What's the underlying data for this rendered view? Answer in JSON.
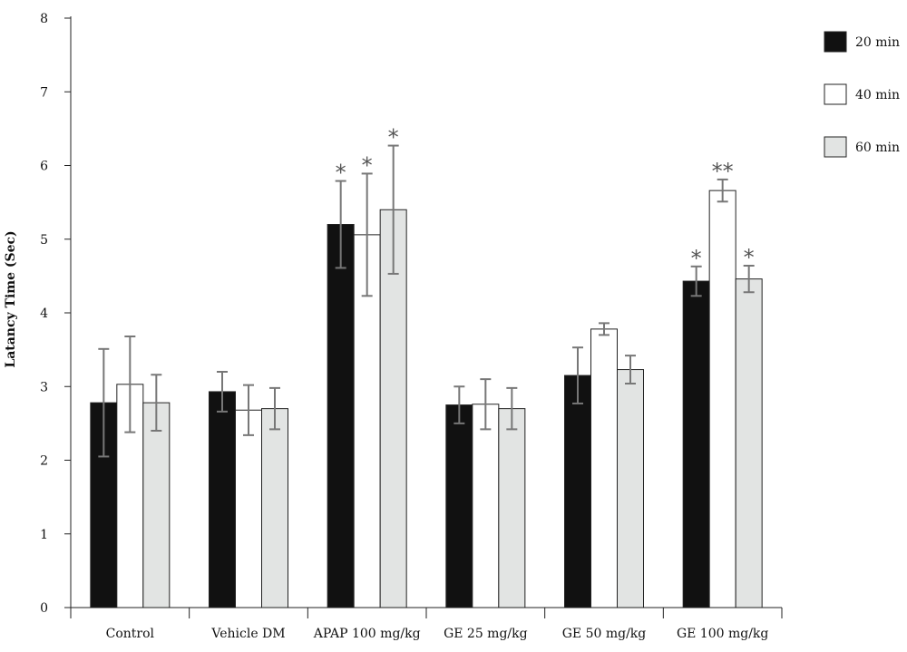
{
  "chart_data": {
    "type": "bar",
    "ylabel": "Latancy Time (Sec)",
    "xlabel": "",
    "ylim": [
      0,
      8
    ],
    "yticks": [
      0,
      1,
      2,
      3,
      4,
      5,
      6,
      7,
      8
    ],
    "grid": false,
    "legend_position": "top-right",
    "categories": [
      "Control",
      "Vehicle DM",
      "APAP 100 mg/kg",
      "GE 25 mg/kg",
      "GE 50 mg/kg",
      "GE 100 mg/kg"
    ],
    "series": [
      {
        "name": "20 min",
        "color": "#111111",
        "values": [
          2.78,
          2.93,
          5.2,
          2.75,
          3.15,
          4.43
        ],
        "errors": [
          0.73,
          0.27,
          0.59,
          0.25,
          0.38,
          0.2
        ],
        "significance": [
          "",
          "",
          "*",
          "",
          "",
          "*"
        ]
      },
      {
        "name": "40 min",
        "color": "#ffffff",
        "values": [
          3.03,
          2.68,
          5.06,
          2.76,
          3.78,
          5.66
        ],
        "errors": [
          0.65,
          0.34,
          0.83,
          0.34,
          0.08,
          0.15
        ],
        "significance": [
          "",
          "",
          "*",
          "",
          "",
          "**"
        ]
      },
      {
        "name": "60 min",
        "color": "#e2e4e3",
        "values": [
          2.78,
          2.7,
          5.4,
          2.7,
          3.23,
          4.46
        ],
        "errors": [
          0.38,
          0.28,
          0.87,
          0.28,
          0.19,
          0.18
        ],
        "significance": [
          "",
          "",
          "*",
          "",
          "",
          "*"
        ]
      }
    ]
  }
}
